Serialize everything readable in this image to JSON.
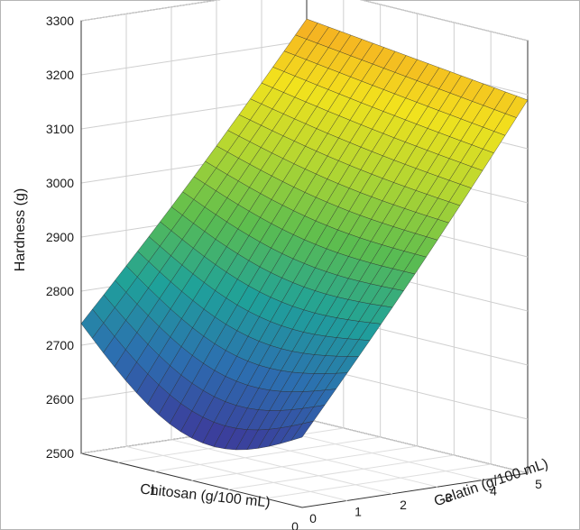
{
  "chart_data": {
    "type": "surface3d",
    "title": "",
    "zlabel": "Hardness (g)",
    "xlabel": "Chitosan (g/100 mL)",
    "ylabel": "Gelatin (g/100 mL)",
    "z_ticks": [
      2500,
      2600,
      2700,
      2800,
      2900,
      3000,
      3100,
      3200,
      3300
    ],
    "x_ticks": [
      0,
      1
    ],
    "y_ticks": [
      0,
      1,
      2,
      3,
      4,
      5
    ],
    "zlim": [
      2500,
      3300
    ],
    "xlim": [
      0,
      1.5
    ],
    "ylim": [
      0,
      5
    ],
    "grid": true,
    "colormap": "viridis-like (blue → green → yellow → orange)",
    "colormap_stops": [
      "#3b3f9c",
      "#2c6fb0",
      "#1fa19a",
      "#5cbd4f",
      "#b2d632",
      "#f2e21d",
      "#f6a623"
    ],
    "surface_corners": [
      {
        "chitosan": 1.5,
        "gelatin": 0,
        "hardness": 2740
      },
      {
        "chitosan": 0,
        "gelatin": 0,
        "hardness": 2630
      },
      {
        "chitosan": 1.5,
        "gelatin": 5,
        "hardness": 3240
      },
      {
        "chitosan": 0,
        "gelatin": 5,
        "hardness": 3190
      }
    ],
    "surface_minimum": {
      "chitosan": 0.5,
      "gelatin": 0.5,
      "hardness": 2600
    }
  }
}
